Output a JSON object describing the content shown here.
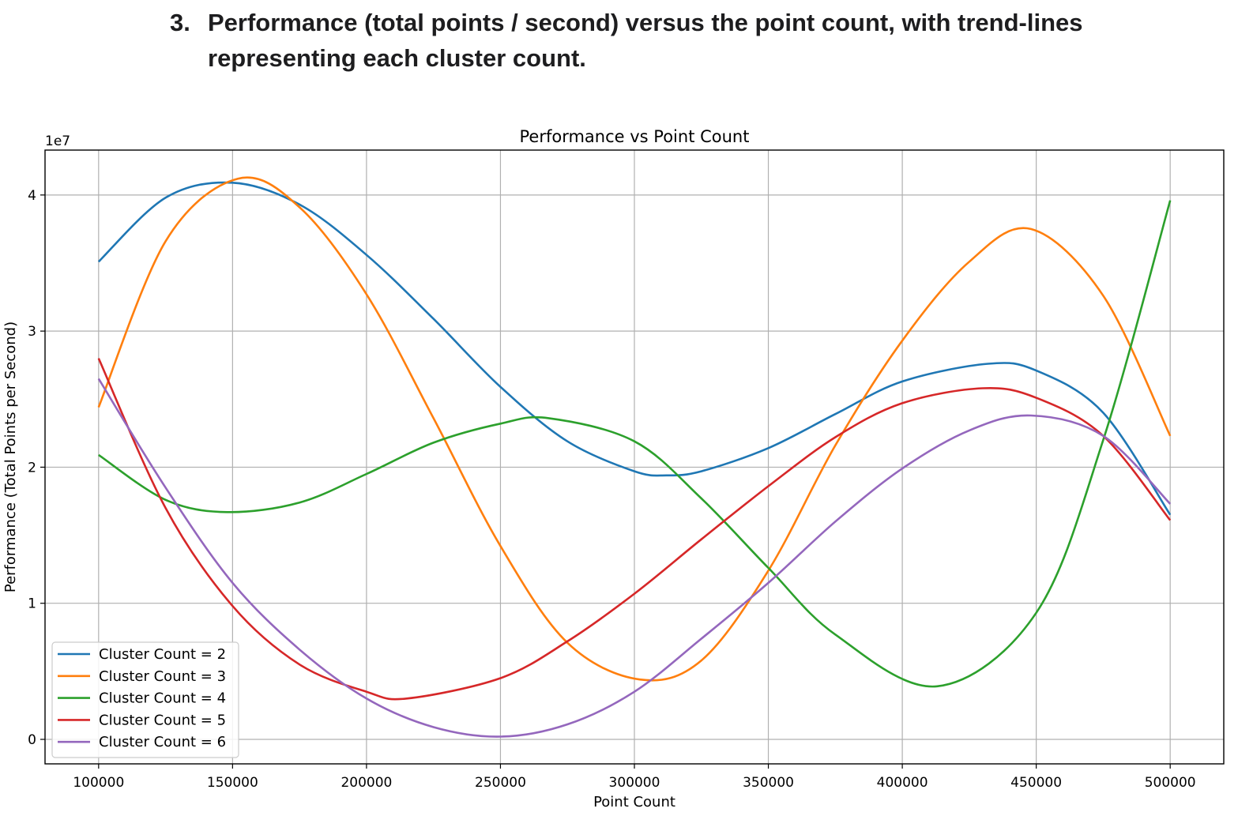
{
  "document": {
    "heading_number": "3.",
    "heading_text": "Performance (total points / second) versus the point count, with trend-lines representing each cluster count."
  },
  "chart_data": {
    "type": "line",
    "title": "Performance vs Point Count",
    "xlabel": "Point Count",
    "ylabel": "Performance (Total Points per Second)",
    "y_offset_label": "1e7",
    "xlim": [
      80000,
      520000
    ],
    "ylim": [
      -1800000,
      43300000
    ],
    "x_ticks": [
      100000,
      150000,
      200000,
      250000,
      300000,
      350000,
      400000,
      450000,
      500000
    ],
    "y_ticks": [
      0,
      10000000,
      20000000,
      30000000,
      40000000
    ],
    "y_tick_labels": [
      "0",
      "1",
      "2",
      "3",
      "4"
    ],
    "grid": true,
    "legend_position": "lower-left",
    "series": [
      {
        "name": "Cluster Count = 2",
        "color": "#1f77b4",
        "x": [
          100000,
          125000,
          150000,
          175000,
          200000,
          225000,
          250000,
          275000,
          300000,
          312000,
          325000,
          350000,
          375000,
          400000,
          432000,
          450000,
          475000,
          500000
        ],
        "y": [
          35100000,
          39800000,
          40900000,
          39300000,
          35600000,
          30900000,
          25900000,
          21900000,
          19700000,
          19400000,
          19700000,
          21400000,
          23900000,
          26300000,
          27600000,
          27100000,
          24000000,
          16500000
        ]
      },
      {
        "name": "Cluster Count = 3",
        "color": "#ff7f0e",
        "x": [
          100000,
          125000,
          152000,
          175000,
          200000,
          225000,
          250000,
          275000,
          302000,
          325000,
          350000,
          375000,
          400000,
          425000,
          448000,
          475000,
          500000
        ],
        "y": [
          24400000,
          36600000,
          41200000,
          39100000,
          32700000,
          23600000,
          14200000,
          7100000,
          4400000,
          5800000,
          12400000,
          21600000,
          29300000,
          35100000,
          37500000,
          32600000,
          22300000
        ]
      },
      {
        "name": "Cluster Count = 4",
        "color": "#2ca02c",
        "x": [
          100000,
          125000,
          148000,
          175000,
          200000,
          225000,
          250000,
          268000,
          300000,
          325000,
          350000,
          375000,
          413000,
          450000,
          475000,
          500000
        ],
        "y": [
          20900000,
          17600000,
          16700000,
          17400000,
          19500000,
          21800000,
          23200000,
          23600000,
          21900000,
          17700000,
          12600000,
          7700000,
          3900000,
          9300000,
          22000000,
          39600000
        ]
      },
      {
        "name": "Cluster Count = 5",
        "color": "#d62728",
        "x": [
          100000,
          125000,
          150000,
          175000,
          200000,
          215000,
          250000,
          275000,
          300000,
          325000,
          350000,
          375000,
          400000,
          430000,
          450000,
          475000,
          500000
        ],
        "y": [
          28000000,
          17000000,
          9800000,
          5500000,
          3500000,
          3000000,
          4500000,
          7200000,
          10700000,
          14700000,
          18600000,
          22200000,
          24700000,
          25800000,
          25100000,
          22300000,
          16100000
        ]
      },
      {
        "name": "Cluster Count = 6",
        "color": "#9467bd",
        "x": [
          100000,
          125000,
          150000,
          175000,
          200000,
          225000,
          250000,
          275000,
          300000,
          325000,
          350000,
          375000,
          400000,
          425000,
          448000,
          475000,
          500000
        ],
        "y": [
          26500000,
          18500000,
          11500000,
          6600000,
          3000000,
          900000,
          200000,
          1100000,
          3500000,
          7400000,
          11500000,
          16000000,
          19900000,
          22700000,
          23800000,
          22300000,
          17300000
        ]
      }
    ]
  }
}
